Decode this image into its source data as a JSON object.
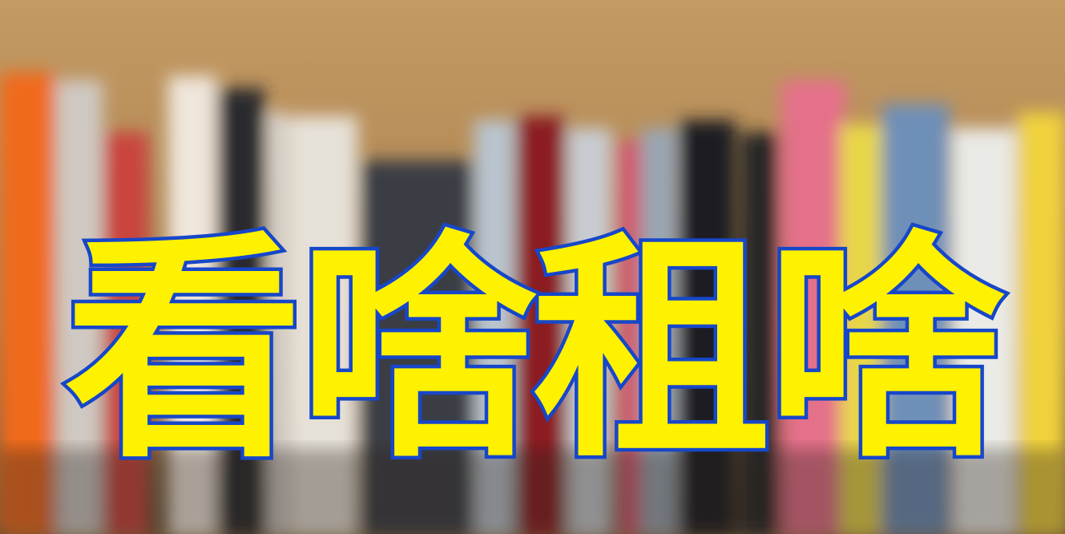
{
  "title": {
    "text": "看啥租啥",
    "fill_color": "#fff200",
    "outline_color": "#1747c9"
  },
  "background": {
    "description_colors": {
      "shelf_wall": "#b38a55",
      "shelf_shadow": "#2a231d"
    },
    "book_spines": [
      {
        "color": "#f06a1c"
      },
      {
        "color": "#cfc9c3"
      },
      {
        "color": "#c9443e"
      },
      {
        "color": "#efe6dc"
      },
      {
        "color": "#2b2b2d"
      },
      {
        "color": "#d9d9d9"
      },
      {
        "color": "#e6e1d8"
      },
      {
        "color": "#3a3d45"
      },
      {
        "color": "#b9c4cf"
      },
      {
        "color": "#8b1c22"
      },
      {
        "color": "#c8ccd2"
      },
      {
        "color": "#d05a6e"
      },
      {
        "color": "#9aa6b3"
      },
      {
        "color": "#1d1f24"
      },
      {
        "color": "#262626"
      },
      {
        "color": "#e56f8a"
      },
      {
        "color": "#e8d64a"
      },
      {
        "color": "#6e8fb8"
      },
      {
        "color": "#eaeae6"
      },
      {
        "color": "#f0d23c"
      }
    ]
  }
}
